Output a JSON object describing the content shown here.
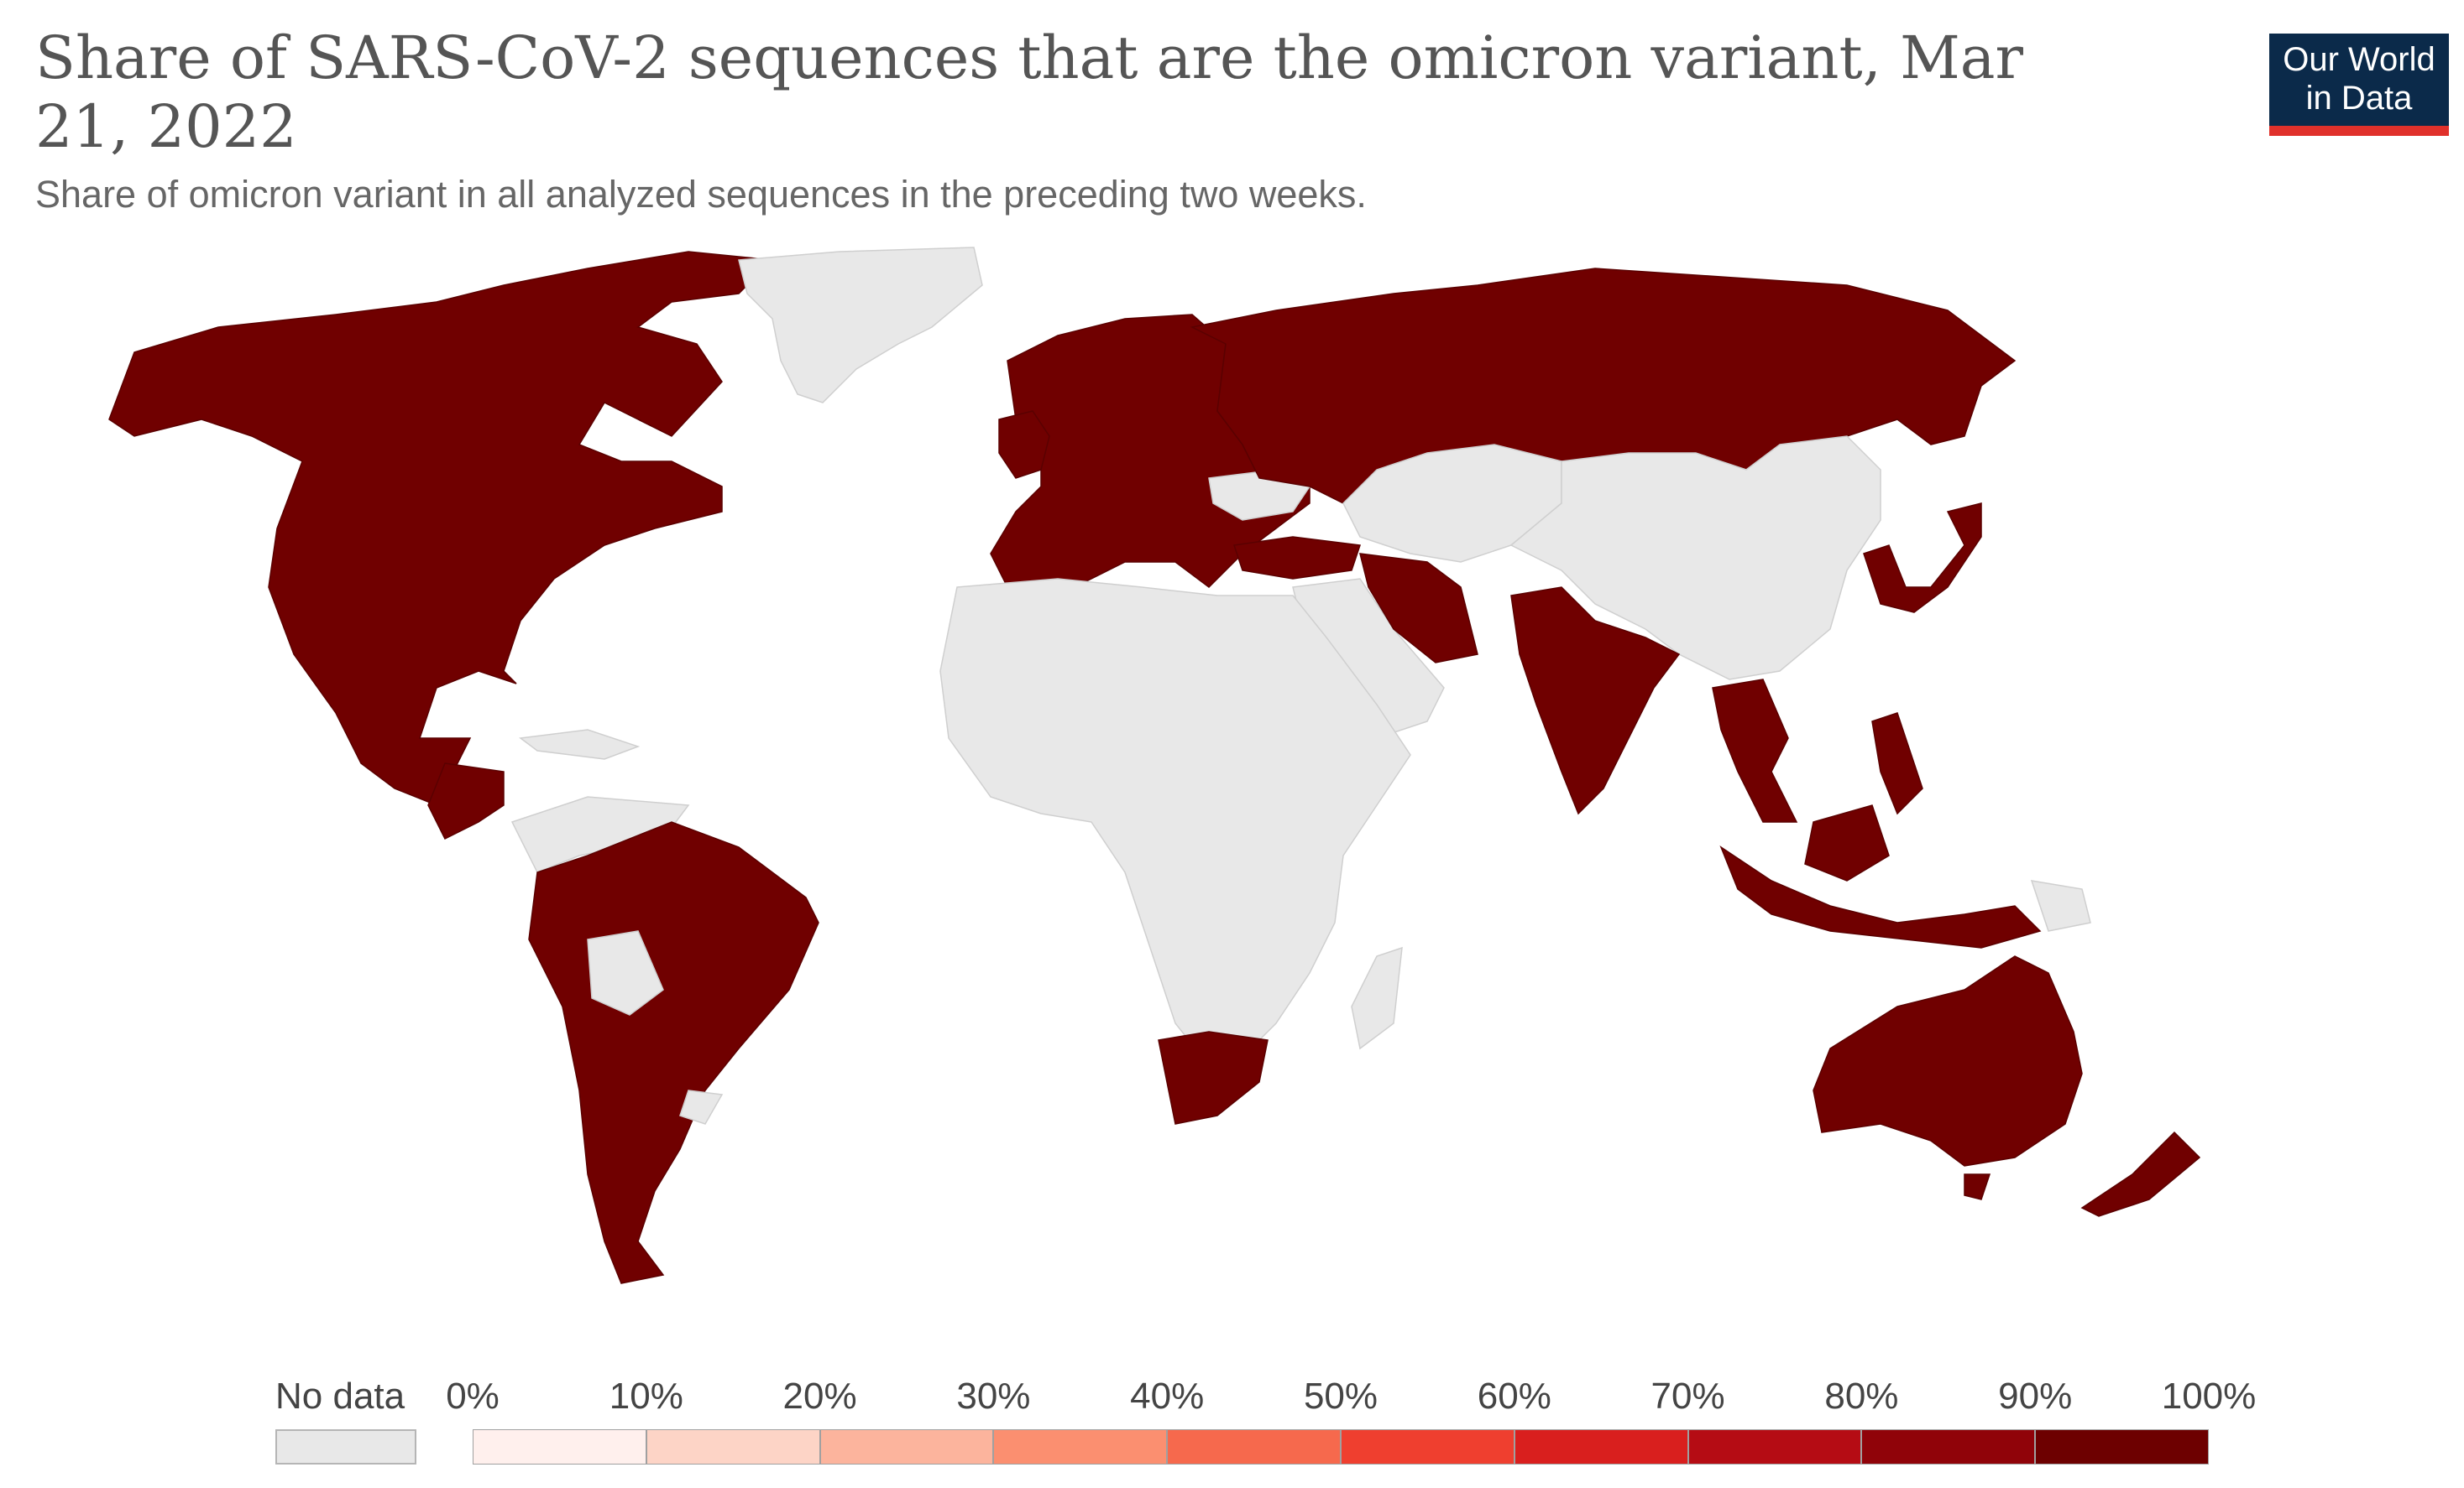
{
  "header": {
    "title": "Share of SARS-CoV-2 sequences that are the omicron variant, Mar 21, 2022",
    "subtitle": "Share of omicron variant in all analyzed sequences in the preceding two weeks.",
    "logo_line1": "Our World",
    "logo_line2": "in Data"
  },
  "colors": {
    "high_share": "#700000",
    "no_data": "#e8e8e8",
    "logo_bg": "#0b2a4a",
    "logo_accent": "#e0312b"
  },
  "legend": {
    "no_data_label": "No data",
    "ticks": [
      "0%",
      "10%",
      "20%",
      "30%",
      "40%",
      "50%",
      "60%",
      "70%",
      "80%",
      "90%",
      "100%"
    ],
    "bin_colors": [
      "#fff0ed",
      "#fdd4c6",
      "#fcb49d",
      "#fb8f70",
      "#f6694d",
      "#ef3f2f",
      "#d91f1e",
      "#b50c14",
      "#900309",
      "#6d0000"
    ]
  },
  "chart_data": {
    "type": "choropleth",
    "metric": "Share of omicron variant in all analyzed sequences (%)",
    "regions_90_100_percent": [
      "Canada",
      "United States",
      "Mexico",
      "Central America (Costa Rica/Panama)",
      "Peru",
      "Brazil",
      "Chile",
      "Argentina",
      "Paraguay",
      "United Kingdom",
      "Ireland",
      "Norway",
      "Sweden",
      "Finland",
      "Denmark",
      "France",
      "Spain",
      "Portugal",
      "Germany",
      "Italy",
      "Poland",
      "Balkans",
      "Turkey",
      "Russia",
      "Iran",
      "Israel",
      "India",
      "Bangladesh",
      "Thailand",
      "Cambodia",
      "Malaysia",
      "Indonesia",
      "Philippines",
      "Japan",
      "South Korea",
      "Australia",
      "New Zealand",
      "South Africa"
    ],
    "regions_no_data": [
      "Greenland",
      "China",
      "Mongolia",
      "Kazakhstan",
      "Central Asia",
      "Saudi Arabia and Arabian Peninsula",
      "North Africa",
      "Sub-Saharan Africa (except South Africa)",
      "Madagascar",
      "Colombia",
      "Venezuela",
      "Bolivia",
      "Uruguay",
      "Caribbean",
      "Papua New Guinea",
      "Pacific Islands"
    ]
  }
}
